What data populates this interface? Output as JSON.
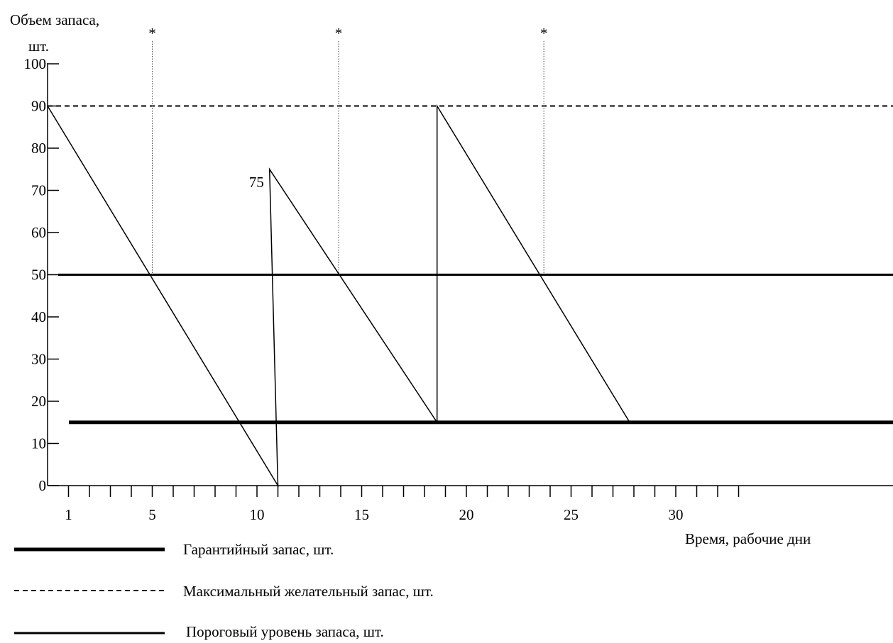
{
  "chart_data": {
    "type": "line",
    "ylabel_line1": "Объем запаса,",
    "ylabel_line2": "шт.",
    "xlabel": "Время, рабочие дни",
    "ylim": [
      0,
      100
    ],
    "xlim": [
      0,
      33.5
    ],
    "yticks": [
      0,
      10,
      20,
      30,
      40,
      50,
      60,
      70,
      80,
      90,
      100
    ],
    "xtick_labels": [
      1,
      5,
      10,
      15,
      20,
      25,
      30
    ],
    "minor_xticks": [
      1,
      2,
      3,
      4,
      5,
      6,
      7,
      8,
      9,
      10,
      11,
      12,
      13,
      14,
      15,
      16,
      17,
      18,
      19,
      20,
      21,
      22,
      23,
      24,
      25,
      26,
      27,
      28,
      29,
      30,
      31,
      32,
      33
    ],
    "levels": {
      "guarantee": 15,
      "max_desired": 90,
      "threshold": 50
    },
    "stock_series": {
      "x": [
        0,
        11,
        10.6,
        18.6,
        18.6,
        27.8
      ],
      "y": [
        90,
        0,
        75,
        15,
        90,
        15
      ]
    },
    "order_points": [
      5,
      13.9,
      23.7
    ],
    "order_mark": "*",
    "annotation": {
      "x": 10.6,
      "y": 75,
      "text": "75"
    },
    "legend": [
      {
        "key": "guarantee",
        "style": "thick",
        "label": "Гарантийный запас, шт."
      },
      {
        "key": "max_desired",
        "style": "dashed",
        "label": "Максимальный желательный запас, шт."
      },
      {
        "key": "threshold",
        "style": "solid",
        "label": "Пороговый уровень запаса, шт."
      }
    ]
  }
}
